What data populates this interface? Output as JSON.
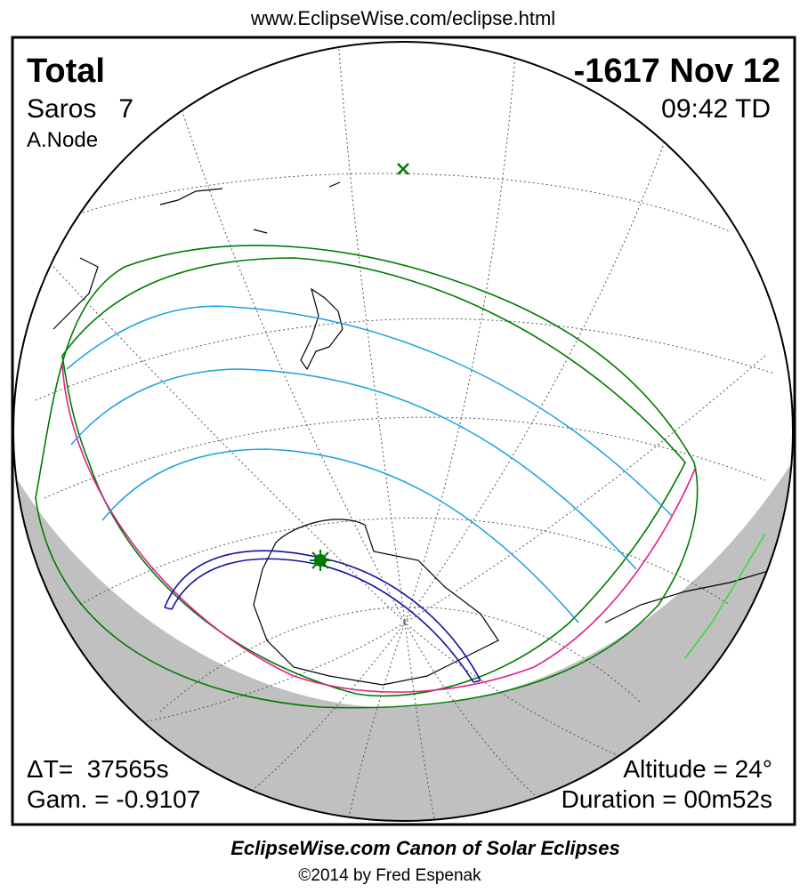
{
  "header": {
    "url": "www.EclipseWise.com/eclipse.html"
  },
  "eclipse": {
    "type": "Total",
    "date": "-1617 Nov 12",
    "saros": "Saros   7",
    "time": "09:42 TD",
    "node": "A.Node",
    "delta_t": "ΔT=  37565s",
    "gamma": "Gam. = -0.9107",
    "altitude": "Altitude = 24°",
    "duration": "Duration = 00m52s"
  },
  "footer": {
    "title": "EclipseWise.com Canon of Solar Eclipses",
    "copyright": "©2014 by Fred Espenak"
  }
}
